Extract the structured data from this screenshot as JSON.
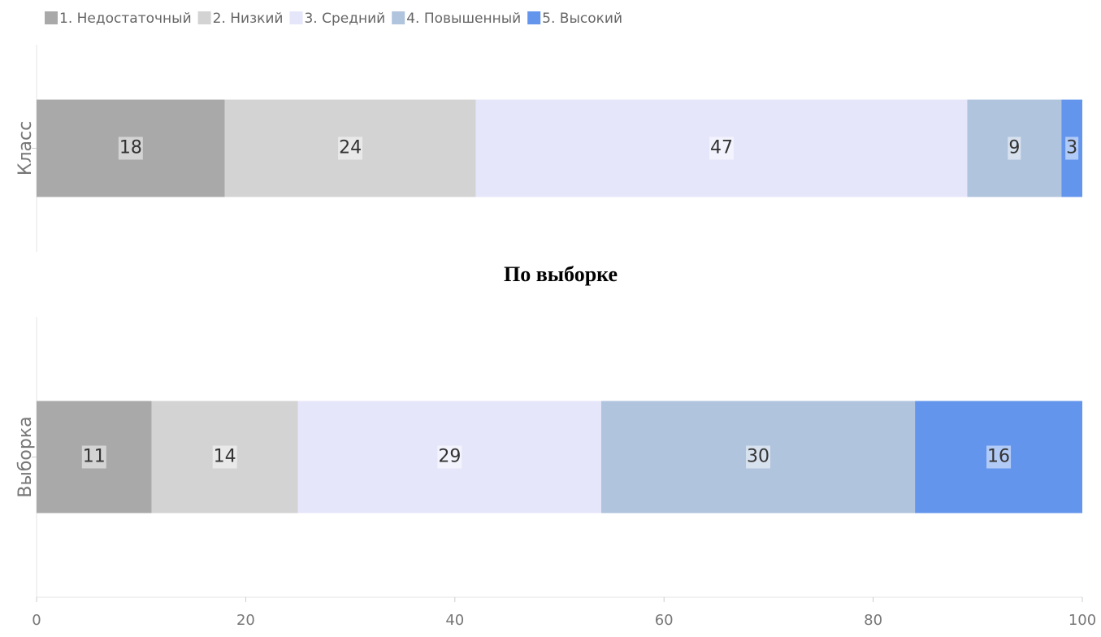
{
  "chart_data": [
    {
      "type": "bar",
      "orientation": "horizontal",
      "stacked": true,
      "categories": [
        "Класс"
      ],
      "series": [
        {
          "name": "1. Недостаточный",
          "color": "#a9a9a9",
          "values": [
            18
          ]
        },
        {
          "name": "2. Низкий",
          "color": "#d3d3d3",
          "values": [
            24
          ]
        },
        {
          "name": "3. Средний",
          "color": "#e6e6fa",
          "values": [
            47
          ]
        },
        {
          "name": "4. Повышенный",
          "color": "#b0c4de",
          "values": [
            9
          ]
        },
        {
          "name": "5. Высокий",
          "color": "#6495ed",
          "values": [
            3
          ]
        }
      ],
      "xlim": [
        0,
        100
      ],
      "legend": "top-left"
    },
    {
      "type": "bar",
      "orientation": "horizontal",
      "stacked": true,
      "title": "По выборке",
      "categories": [
        "Выборка"
      ],
      "series": [
        {
          "color": "#a9a9a9",
          "values": [
            11
          ]
        },
        {
          "color": "#d3d3d3",
          "values": [
            14
          ]
        },
        {
          "color": "#e6e6fa",
          "values": [
            29
          ]
        },
        {
          "color": "#b0c4de",
          "values": [
            30
          ]
        },
        {
          "color": "#6495ed",
          "values": [
            16
          ]
        }
      ],
      "xlim": [
        0,
        100
      ],
      "xticks": [
        0,
        20,
        40,
        60,
        80,
        100
      ]
    }
  ]
}
